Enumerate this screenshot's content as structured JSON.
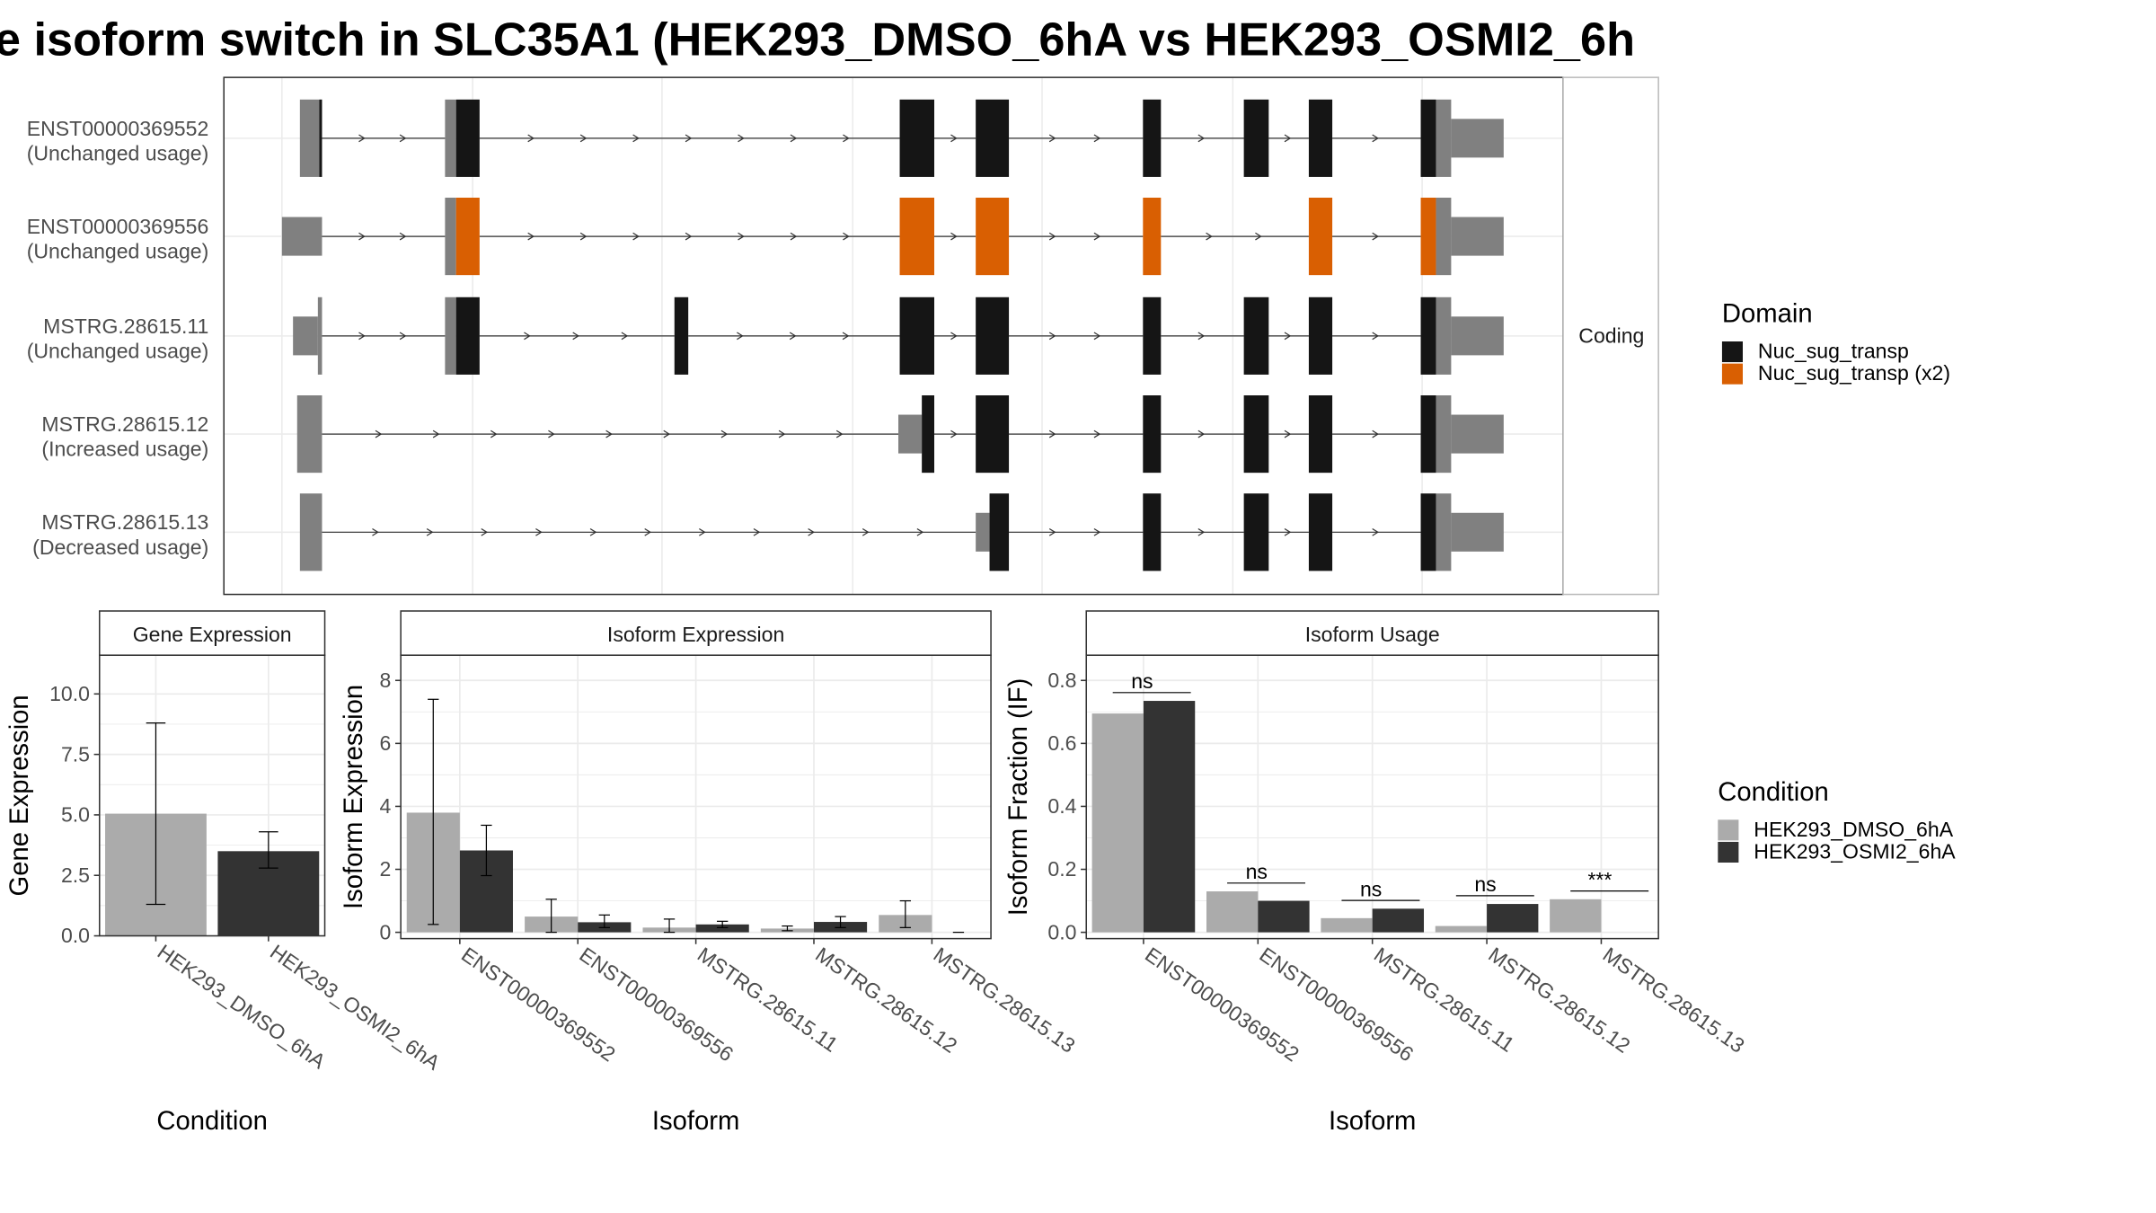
{
  "title": "e isoform switch in SLC35A1 (HEK293_DMSO_6hA vs HEK293_OSMI2_6h",
  "colors": {
    "dmso": "#ABABAB",
    "osmi": "#333333",
    "domain_nuc": "#151515",
    "domain_x2": "#D95F02",
    "utr": "#808080",
    "grid": "#EBEBEB",
    "panel_border": "#333333"
  },
  "transcripts": {
    "strip_label": "Coding",
    "rows": [
      {
        "name": "ENST00000369552",
        "usage": "(Unchanged usage)",
        "utr": [
          [
            217,
            231,
            "full"
          ],
          [
            322,
            330,
            "full"
          ],
          [
            1039,
            1050,
            "full"
          ],
          [
            1050,
            1088,
            "half"
          ]
        ],
        "cds": [
          [
            231,
            233
          ],
          [
            330,
            347
          ],
          [
            651,
            676
          ],
          [
            706,
            730
          ],
          [
            827,
            840
          ],
          [
            900,
            918
          ],
          [
            947,
            964
          ],
          [
            1028,
            1039
          ]
        ],
        "domain": "nuc",
        "introns": [
          [
            233,
            322
          ],
          [
            347,
            651
          ],
          [
            676,
            706
          ],
          [
            730,
            827
          ],
          [
            840,
            900
          ],
          [
            918,
            947
          ],
          [
            964,
            1028
          ]
        ]
      },
      {
        "name": "ENST00000369556",
        "usage": "(Unchanged usage)",
        "utr": [
          [
            204,
            233,
            "half"
          ],
          [
            322,
            330,
            "full"
          ],
          [
            1039,
            1050,
            "full"
          ],
          [
            1050,
            1088,
            "half"
          ]
        ],
        "cds": [
          [
            330,
            347
          ],
          [
            651,
            676
          ],
          [
            706,
            730
          ],
          [
            827,
            840
          ],
          [
            947,
            964
          ],
          [
            1028,
            1039
          ]
        ],
        "domain": "x2",
        "introns": [
          [
            233,
            322
          ],
          [
            347,
            651
          ],
          [
            676,
            706
          ],
          [
            730,
            827
          ],
          [
            840,
            947
          ],
          [
            964,
            1028
          ]
        ]
      },
      {
        "name": "MSTRG.28615.11",
        "usage": "(Unchanged usage)",
        "utr": [
          [
            212,
            230,
            "half"
          ],
          [
            230,
            233,
            "full"
          ],
          [
            322,
            330,
            "full"
          ],
          [
            1039,
            1050,
            "full"
          ],
          [
            1050,
            1088,
            "half"
          ]
        ],
        "cds": [
          [
            330,
            347
          ],
          [
            488,
            498
          ],
          [
            651,
            676
          ],
          [
            706,
            730
          ],
          [
            827,
            840
          ],
          [
            900,
            918
          ],
          [
            947,
            964
          ],
          [
            1028,
            1039
          ]
        ],
        "domain": "nuc",
        "introns": [
          [
            233,
            322
          ],
          [
            347,
            488
          ],
          [
            498,
            651
          ],
          [
            676,
            706
          ],
          [
            730,
            827
          ],
          [
            840,
            900
          ],
          [
            918,
            947
          ],
          [
            964,
            1028
          ]
        ]
      },
      {
        "name": "MSTRG.28615.12",
        "usage": "(Increased usage)",
        "utr": [
          [
            215,
            233,
            "full"
          ],
          [
            650,
            667,
            "half"
          ],
          [
            1039,
            1050,
            "full"
          ],
          [
            1050,
            1088,
            "half"
          ]
        ],
        "cds": [
          [
            667,
            676
          ],
          [
            706,
            730
          ],
          [
            827,
            840
          ],
          [
            900,
            918
          ],
          [
            947,
            964
          ],
          [
            1028,
            1039
          ]
        ],
        "domain": "nuc",
        "introns": [
          [
            233,
            650
          ],
          [
            676,
            706
          ],
          [
            730,
            827
          ],
          [
            840,
            900
          ],
          [
            918,
            947
          ],
          [
            964,
            1028
          ]
        ]
      },
      {
        "name": "MSTRG.28615.13",
        "usage": "(Decreased usage)",
        "utr": [
          [
            217,
            233,
            "full"
          ],
          [
            706,
            716,
            "half"
          ],
          [
            1039,
            1050,
            "full"
          ],
          [
            1050,
            1088,
            "half"
          ]
        ],
        "cds": [
          [
            716,
            730
          ],
          [
            827,
            840
          ],
          [
            900,
            918
          ],
          [
            947,
            964
          ],
          [
            1028,
            1039
          ]
        ],
        "domain": "nuc",
        "introns": [
          [
            233,
            706
          ],
          [
            730,
            827
          ],
          [
            840,
            900
          ],
          [
            918,
            947
          ],
          [
            964,
            1028
          ]
        ]
      }
    ]
  },
  "domain_legend": {
    "title": "Domain",
    "items": [
      {
        "label": "Nuc_sug_transp",
        "color": "#151515"
      },
      {
        "label": "Nuc_sug_transp (x2)",
        "color": "#D95F02"
      }
    ]
  },
  "condition_legend": {
    "title": "Condition",
    "items": [
      {
        "label": "HEK293_DMSO_6hA",
        "color": "#ABABAB"
      },
      {
        "label": "HEK293_OSMI2_6hA",
        "color": "#333333"
      }
    ]
  },
  "chart_data": [
    {
      "type": "bar",
      "title": "Gene Expression",
      "xlabel": "Condition",
      "ylabel": "Gene Expression",
      "ylim": [
        0,
        11.6
      ],
      "yticks": [
        0.0,
        2.5,
        5.0,
        7.5,
        10.0
      ],
      "ytick_labels": [
        "0.0",
        "2.5",
        "5.0",
        "7.5",
        "10.0"
      ],
      "categories": [
        "HEK293_DMSO_6hA",
        "HEK293_OSMI2_6hA"
      ],
      "values": [
        5.05,
        3.5
      ],
      "errors": [
        [
          1.3,
          8.8
        ],
        [
          2.8,
          4.3
        ]
      ]
    },
    {
      "type": "bar",
      "title": "Isoform Expression",
      "xlabel": "Isoform",
      "ylabel": "Isoform Expression",
      "ylim": [
        -0.2,
        8.8
      ],
      "yticks": [
        0,
        2,
        4,
        6,
        8
      ],
      "ytick_labels": [
        "0",
        "2",
        "4",
        "6",
        "8"
      ],
      "categories": [
        "ENST00000369552",
        "ENST00000369556",
        "MSTRG.28615.11",
        "MSTRG.28615.12",
        "MSTRG.28615.13"
      ],
      "series": [
        {
          "name": "HEK293_DMSO_6hA",
          "values": [
            3.8,
            0.5,
            0.15,
            0.12,
            0.55
          ],
          "errors": [
            [
              0.25,
              7.4
            ],
            [
              0.0,
              1.05
            ],
            [
              0.0,
              0.42
            ],
            [
              0.05,
              0.2
            ],
            [
              0.15,
              1.0
            ]
          ]
        },
        {
          "name": "HEK293_OSMI2_6hA",
          "values": [
            2.6,
            0.32,
            0.25,
            0.33,
            0.0
          ],
          "errors": [
            [
              1.8,
              3.4
            ],
            [
              0.15,
              0.55
            ],
            [
              0.15,
              0.35
            ],
            [
              0.15,
              0.5
            ],
            [
              0.0,
              0.0
            ]
          ]
        }
      ]
    },
    {
      "type": "bar",
      "title": "Isoform Usage",
      "xlabel": "Isoform",
      "ylabel": "Isoform Fraction (IF)",
      "ylim": [
        -0.02,
        0.88
      ],
      "yticks": [
        0.0,
        0.2,
        0.4,
        0.6,
        0.8
      ],
      "ytick_labels": [
        "0.0",
        "0.2",
        "0.4",
        "0.6",
        "0.8"
      ],
      "categories": [
        "ENST00000369552",
        "ENST00000369556",
        "MSTRG.28615.11",
        "MSTRG.28615.12",
        "MSTRG.28615.13"
      ],
      "series": [
        {
          "name": "HEK293_DMSO_6hA",
          "values": [
            0.695,
            0.13,
            0.045,
            0.02,
            0.105
          ]
        },
        {
          "name": "HEK293_OSMI2_6hA",
          "values": [
            0.735,
            0.1,
            0.075,
            0.09,
            0.0
          ]
        }
      ],
      "significance": [
        "ns",
        "ns",
        "ns",
        "ns",
        "***"
      ]
    }
  ]
}
